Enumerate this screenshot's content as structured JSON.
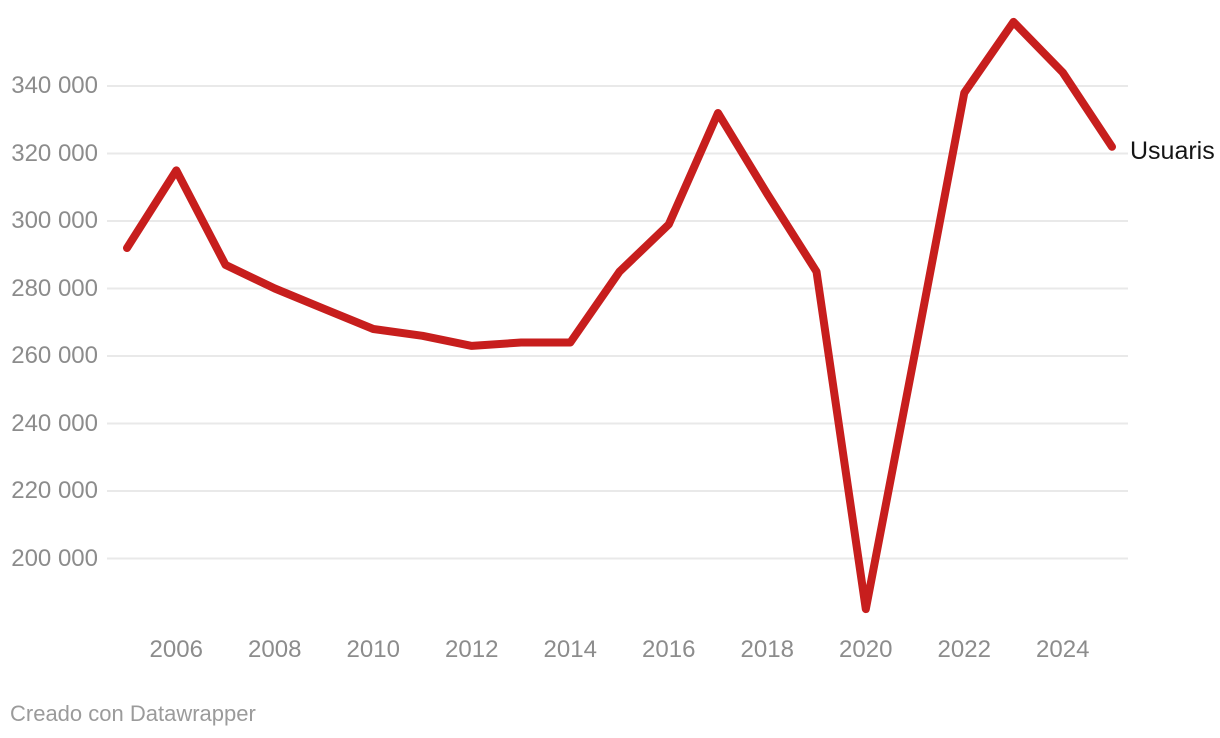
{
  "chart_data": {
    "type": "line",
    "title": "",
    "series_label": "Usuaris",
    "x": [
      2005,
      2006,
      2007,
      2008,
      2009,
      2010,
      2011,
      2012,
      2013,
      2014,
      2015,
      2016,
      2017,
      2018,
      2019,
      2020,
      2021,
      2022,
      2023,
      2024,
      2025
    ],
    "values": [
      292000,
      315000,
      287000,
      280000,
      274000,
      268000,
      266000,
      263000,
      264000,
      264000,
      285000,
      299000,
      332000,
      308000,
      285000,
      185000,
      261000,
      338000,
      359000,
      344000,
      322000
    ],
    "x_ticks": [
      {
        "value": 2006,
        "label": "2006"
      },
      {
        "value": 2008,
        "label": "2008"
      },
      {
        "value": 2010,
        "label": "2010"
      },
      {
        "value": 2012,
        "label": "2012"
      },
      {
        "value": 2014,
        "label": "2014"
      },
      {
        "value": 2016,
        "label": "2016"
      },
      {
        "value": 2018,
        "label": "2018"
      },
      {
        "value": 2020,
        "label": "2020"
      },
      {
        "value": 2022,
        "label": "2022"
      },
      {
        "value": 2024,
        "label": "2024"
      }
    ],
    "y_ticks": [
      {
        "value": 340000,
        "label": "340 000"
      },
      {
        "value": 320000,
        "label": "320 000"
      },
      {
        "value": 300000,
        "label": "300 000"
      },
      {
        "value": 280000,
        "label": "280 000"
      },
      {
        "value": 260000,
        "label": "260 000"
      },
      {
        "value": 240000,
        "label": "240 000"
      },
      {
        "value": 220000,
        "label": "220 000"
      },
      {
        "value": 200000,
        "label": "200 000"
      }
    ],
    "xlim": [
      2005,
      2025
    ],
    "ylim": [
      180000,
      362000
    ],
    "grid": "horizontal-only",
    "legend_position": "direct-label-right-of-line-end",
    "line_color": "#c71e1d",
    "grid_color": "#e9e9e9",
    "tick_text_color": "#8c8c8c"
  },
  "footer": {
    "credit": "Creado con Datawrapper"
  }
}
